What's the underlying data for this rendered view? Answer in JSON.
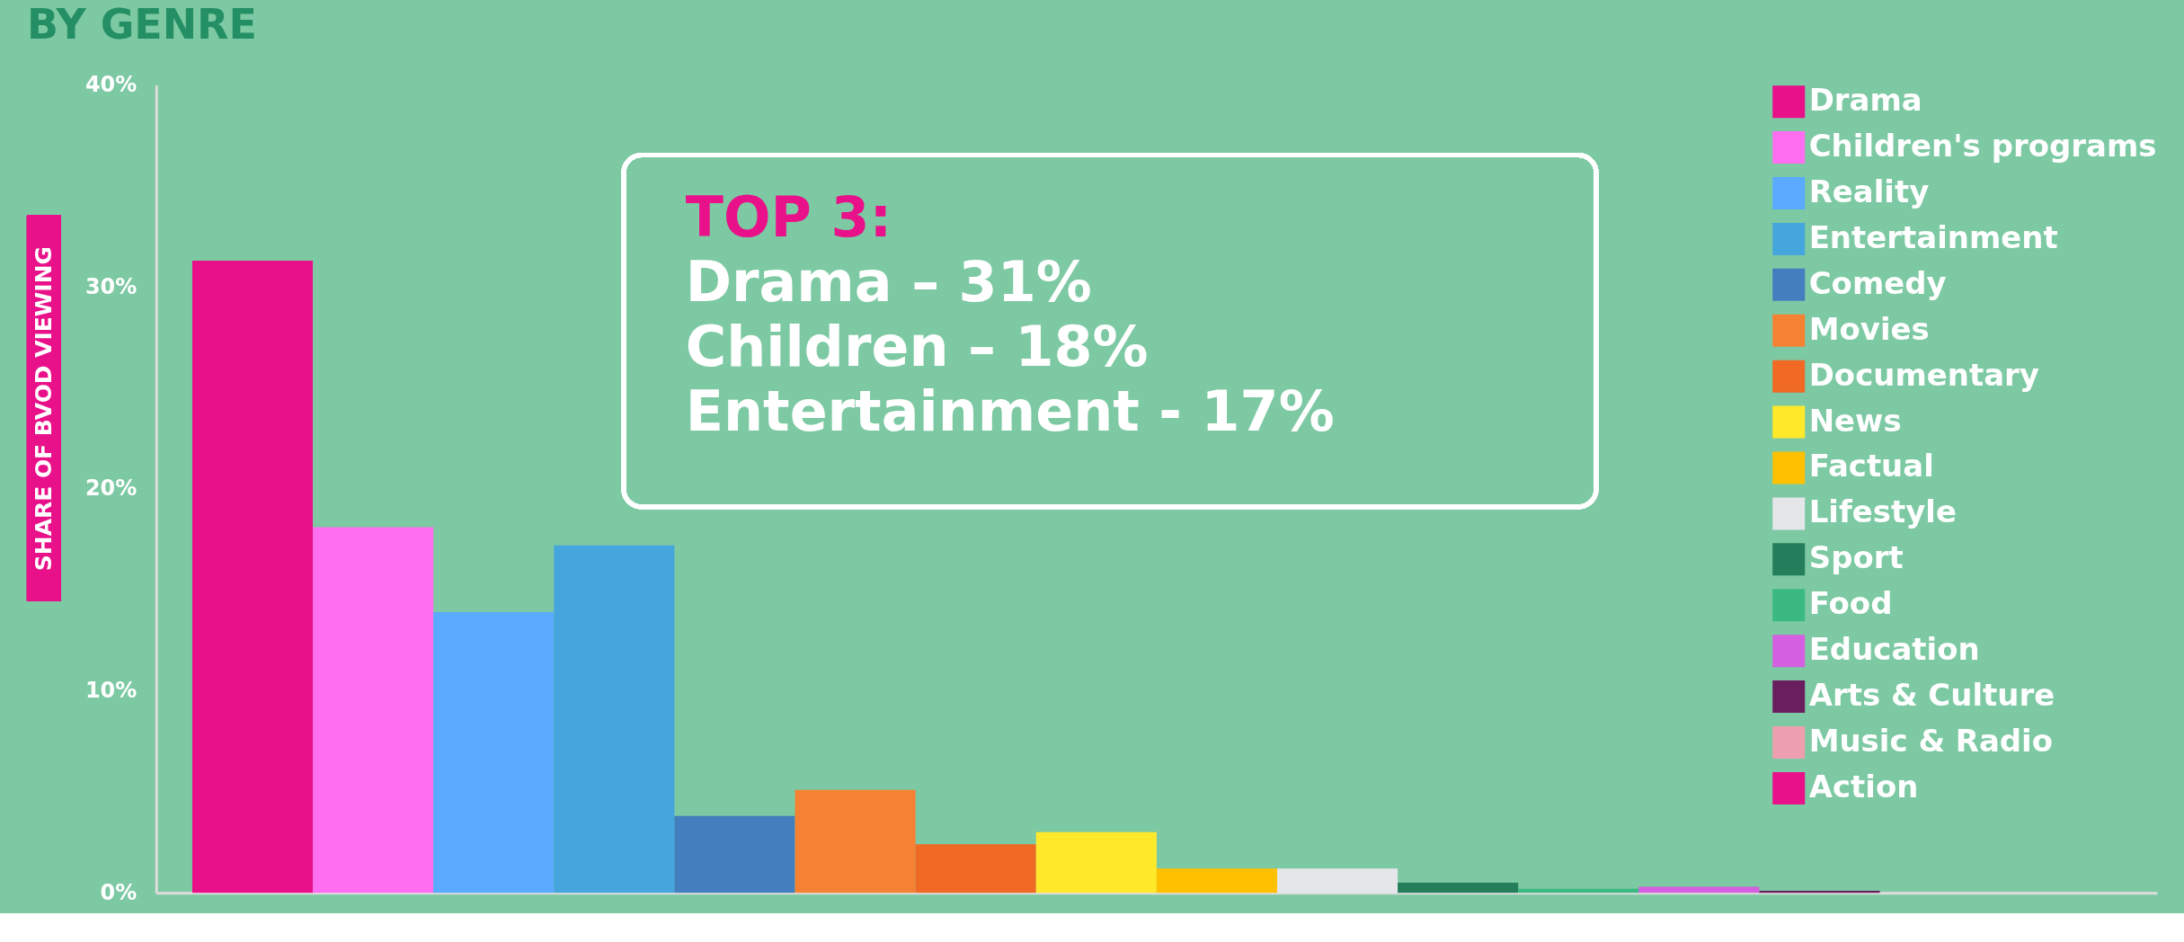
{
  "chart_data": {
    "type": "bar",
    "title": "BY GENRE",
    "ylabel": "SHARE OF BVOD VIEWING",
    "categories": [
      null,
      null,
      null,
      null,
      null,
      null,
      null,
      null,
      null,
      null,
      null,
      null,
      null,
      null,
      null,
      null
    ],
    "series": [
      {
        "name": "Drama",
        "color": "#e9118a",
        "values": [
          31.3,
          null,
          null,
          null,
          null,
          null,
          null,
          null,
          null,
          null,
          null,
          null,
          null,
          null,
          null,
          null
        ]
      },
      {
        "name": "Children's programs",
        "color": "#ff6ef0",
        "values": [
          null,
          18.1,
          null,
          null,
          null,
          null,
          null,
          null,
          null,
          null,
          null,
          null,
          null,
          null,
          null,
          null
        ]
      },
      {
        "name": "Reality",
        "color": "#5aabff",
        "values": [
          null,
          null,
          13.9,
          null,
          null,
          null,
          null,
          null,
          null,
          null,
          null,
          null,
          null,
          null,
          null,
          null
        ]
      },
      {
        "name": "Entertainment",
        "color": "#45a5dd",
        "values": [
          null,
          null,
          null,
          17.2,
          null,
          null,
          null,
          null,
          null,
          null,
          null,
          null,
          null,
          null,
          null,
          null
        ]
      },
      {
        "name": "Comedy",
        "color": "#437ebf",
        "values": [
          null,
          null,
          null,
          null,
          3.8,
          null,
          null,
          null,
          null,
          null,
          null,
          null,
          null,
          null,
          null,
          null
        ]
      },
      {
        "name": "Movies",
        "color": "#f58232",
        "values": [
          null,
          null,
          null,
          null,
          null,
          5.1,
          null,
          null,
          null,
          null,
          null,
          null,
          null,
          null,
          null,
          null
        ]
      },
      {
        "name": "Documentary",
        "color": "#f06925",
        "values": [
          null,
          null,
          null,
          null,
          null,
          null,
          2.4,
          null,
          null,
          null,
          null,
          null,
          null,
          null,
          null,
          null
        ]
      },
      {
        "name": "News",
        "color": "#ffe92a",
        "values": [
          null,
          null,
          null,
          null,
          null,
          null,
          null,
          3.0,
          null,
          null,
          null,
          null,
          null,
          null,
          null,
          null
        ]
      },
      {
        "name": "Factual",
        "color": "#ffc000",
        "values": [
          null,
          null,
          null,
          null,
          null,
          null,
          null,
          null,
          1.2,
          null,
          null,
          null,
          null,
          null,
          null,
          null
        ]
      },
      {
        "name": "Lifestyle",
        "color": "#e5e6ea",
        "values": [
          null,
          null,
          null,
          null,
          null,
          null,
          null,
          null,
          null,
          1.2,
          null,
          null,
          null,
          null,
          null,
          null
        ]
      },
      {
        "name": "Sport",
        "color": "#247e5c",
        "values": [
          null,
          null,
          null,
          null,
          null,
          null,
          null,
          null,
          null,
          null,
          0.5,
          null,
          null,
          null,
          null,
          null
        ]
      },
      {
        "name": "Food",
        "color": "#3aba82",
        "values": [
          null,
          null,
          null,
          null,
          null,
          null,
          null,
          null,
          null,
          null,
          null,
          0.2,
          null,
          null,
          null,
          null
        ]
      },
      {
        "name": "Education",
        "color": "#d45fe0",
        "values": [
          null,
          null,
          null,
          null,
          null,
          null,
          null,
          null,
          null,
          null,
          null,
          null,
          0.3,
          null,
          null,
          null
        ]
      },
      {
        "name": "Arts & Culture",
        "color": "#6a1e5e",
        "values": [
          null,
          null,
          null,
          null,
          null,
          null,
          null,
          null,
          null,
          null,
          null,
          null,
          null,
          0.1,
          null,
          null
        ]
      },
      {
        "name": "Music & Radio",
        "color": "#ed9fb0",
        "values": [
          null,
          null,
          null,
          null,
          null,
          null,
          null,
          null,
          null,
          null,
          null,
          null,
          null,
          null,
          0,
          null
        ]
      },
      {
        "name": "Action",
        "color": "#e9118a",
        "values": [
          null,
          null,
          null,
          null,
          null,
          null,
          null,
          null,
          null,
          null,
          null,
          null,
          null,
          null,
          null,
          0
        ]
      }
    ],
    "ylim": [
      0,
      40
    ],
    "yticks": [
      {
        "value": 0,
        "label": "0%"
      },
      {
        "value": 10,
        "label": "10%"
      },
      {
        "value": 20,
        "label": "20%"
      },
      {
        "value": 30,
        "label": "30%"
      },
      {
        "value": 40,
        "label": "40%"
      }
    ],
    "tick_labels": "y",
    "grid": false,
    "legend": "top right",
    "annotations": [
      "TOP 3:",
      "Drama – 31%",
      "Children – 18%",
      "Entertainment - 17%"
    ]
  }
}
